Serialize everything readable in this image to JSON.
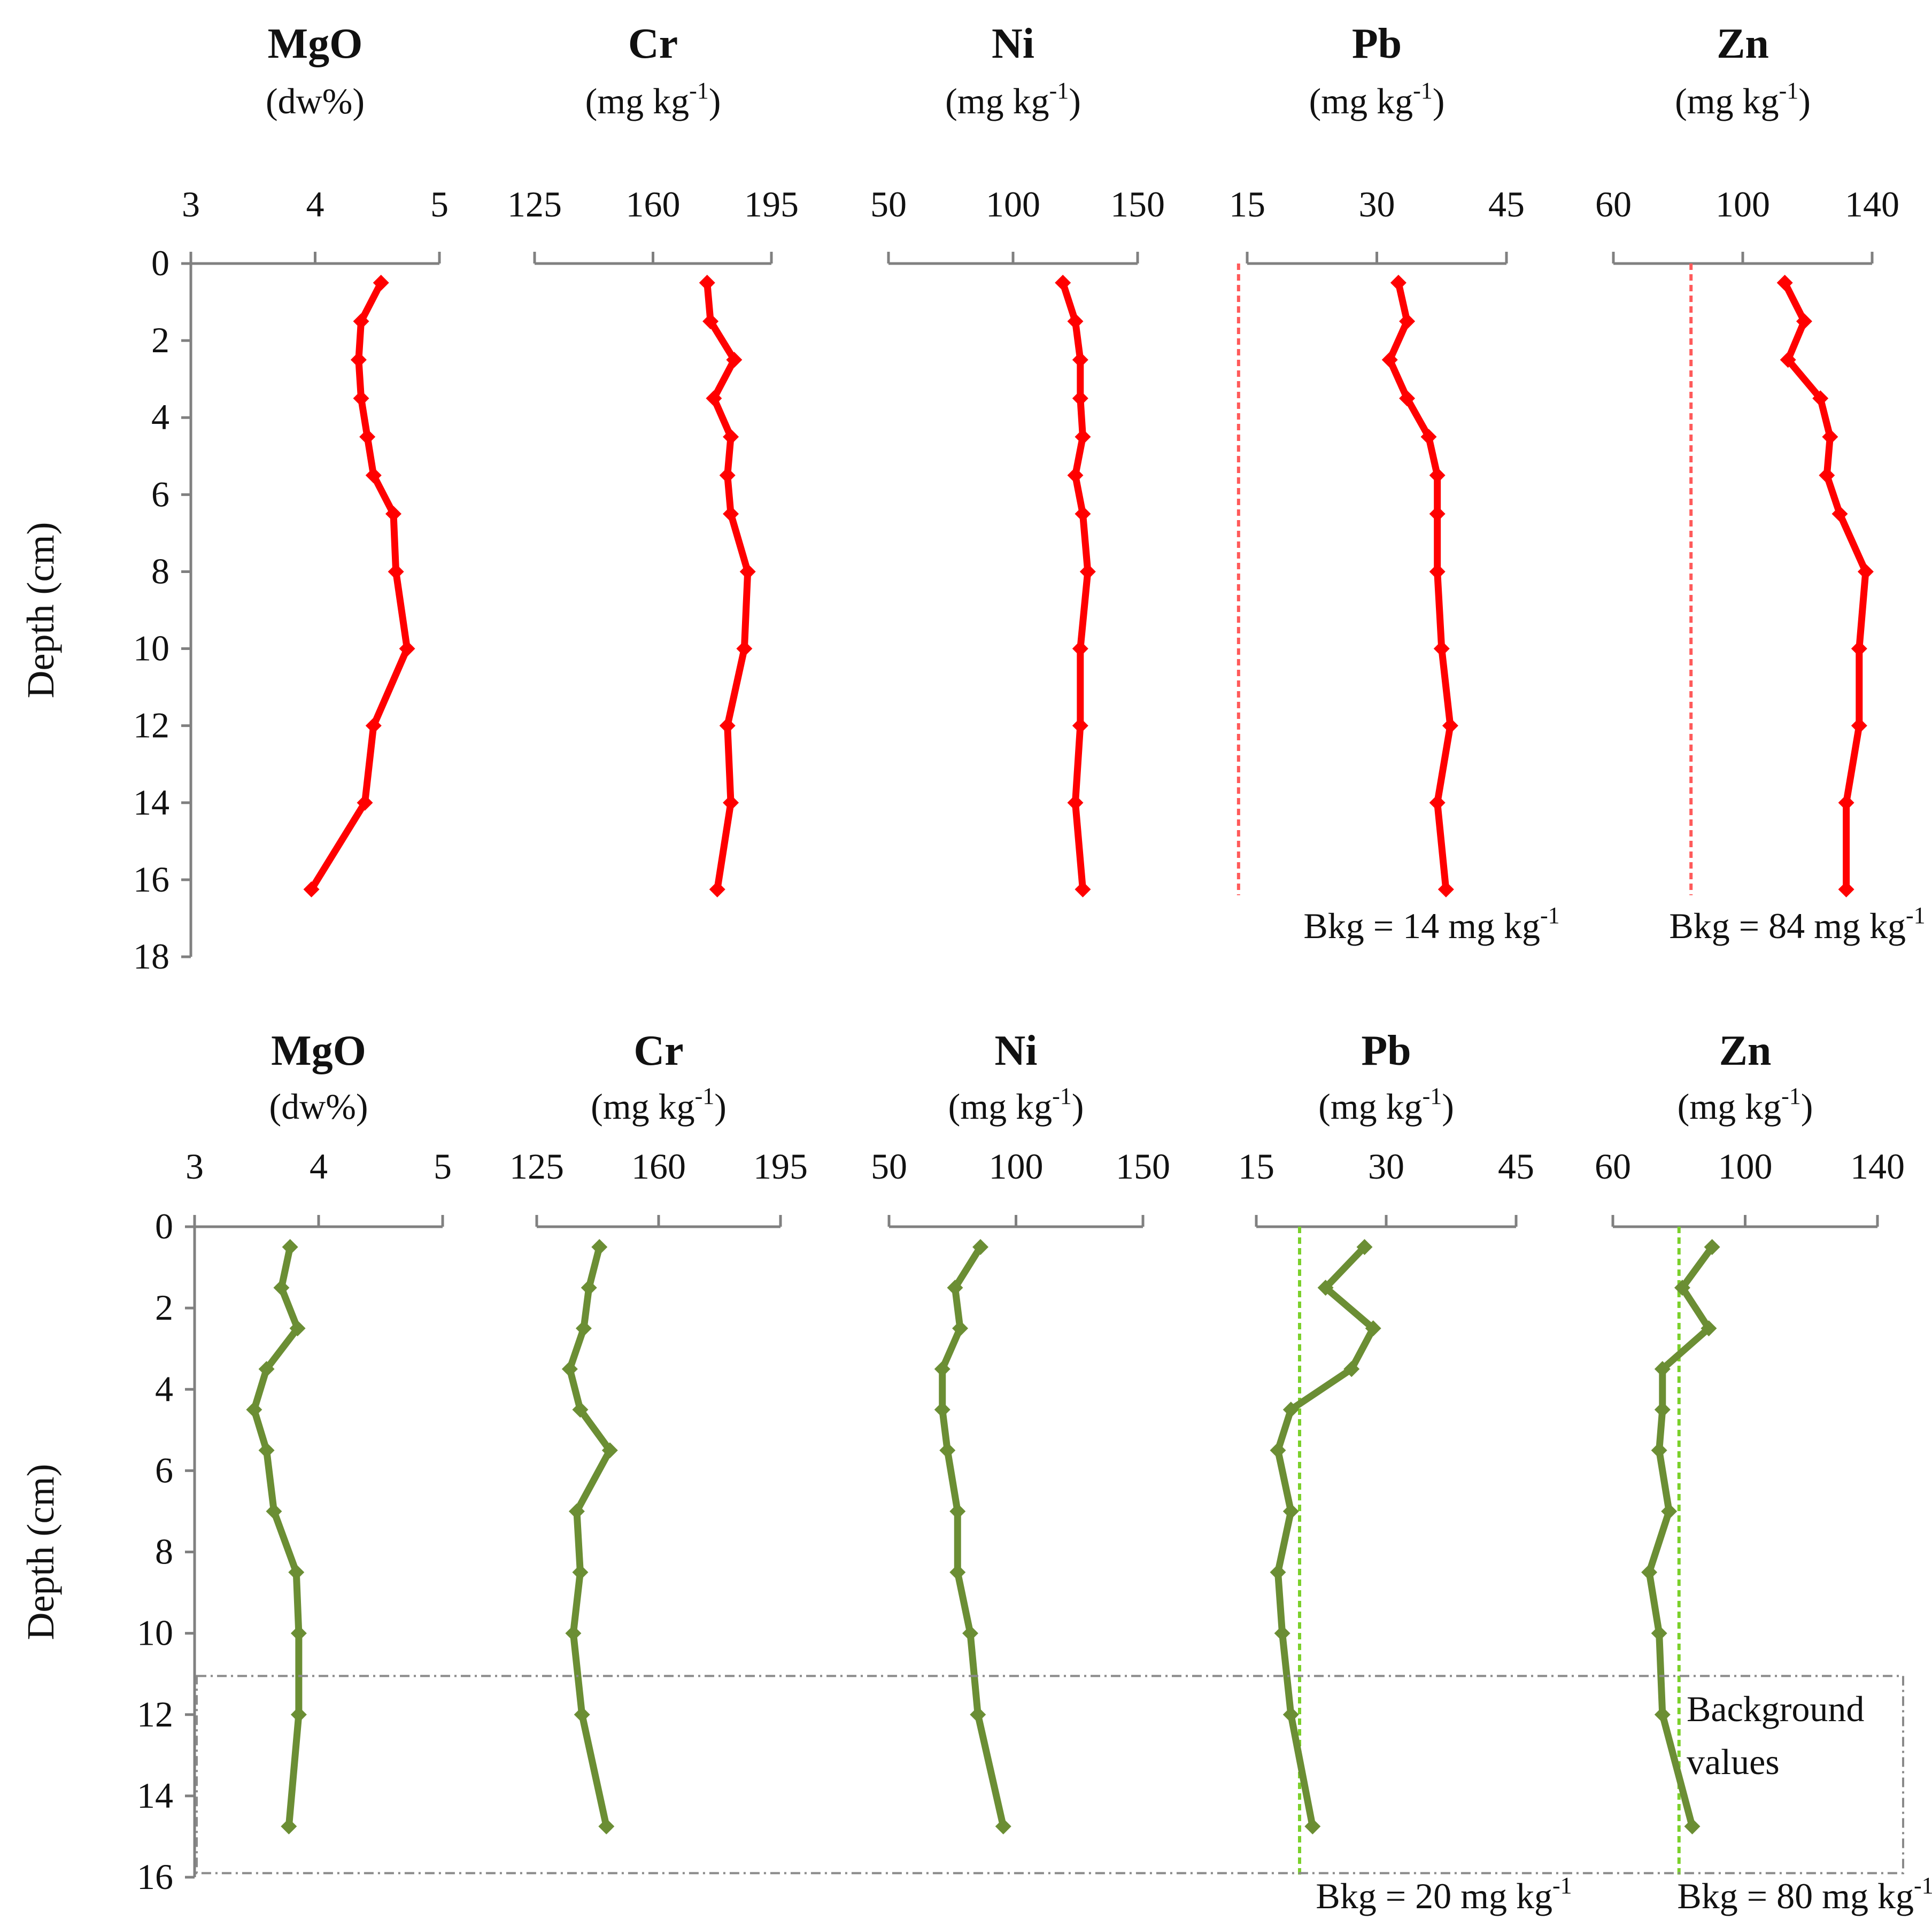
{
  "figure": {
    "depth_label": "Depth (cm)",
    "background_box_label": [
      "Background",
      "values"
    ]
  },
  "colors": {
    "top": "#ff0000",
    "bottom": "#6b8e34",
    "bkg_top": "#ff5a5a",
    "bkg_bottom": "#7bd02b",
    "axis": "#808080"
  },
  "chart_data": [
    {
      "type": "line",
      "name": "top-core",
      "ylabel": "Depth (cm)",
      "ylim": [
        0,
        18
      ],
      "yticks": [
        0,
        2,
        4,
        6,
        8,
        10,
        12,
        14,
        16,
        18
      ],
      "depth": [
        0.5,
        1.5,
        2.5,
        3.5,
        4.5,
        5.5,
        6.5,
        8,
        10,
        12,
        14,
        16.25
      ],
      "panels": [
        {
          "name": "MgO",
          "title": "MgO",
          "unit": "(dw%)",
          "sup": "",
          "unit_end": "",
          "xlim": [
            3,
            5
          ],
          "xticks": [
            "3",
            "4",
            "5"
          ],
          "values": [
            4.53,
            4.37,
            4.35,
            4.37,
            4.42,
            4.47,
            4.63,
            4.65,
            4.74,
            4.47,
            4.4,
            3.97
          ]
        },
        {
          "name": "Cr",
          "title": "Cr",
          "unit": "(mg kg",
          "sup": "-1",
          "unit_end": ")",
          "xlim": [
            125,
            195
          ],
          "xticks": [
            "125",
            "160",
            "195"
          ],
          "values": [
            176,
            177,
            184,
            178,
            183,
            182,
            183,
            188,
            187,
            182,
            183,
            179
          ]
        },
        {
          "name": "Ni",
          "title": "Ni",
          "unit": "(mg kg",
          "sup": "-1",
          "unit_end": ")",
          "xlim": [
            50,
            150
          ],
          "xticks": [
            "50",
            "100",
            "150"
          ],
          "values": [
            120,
            125,
            127,
            127,
            128,
            125,
            128,
            130,
            127,
            127,
            125,
            128
          ]
        },
        {
          "name": "Pb",
          "title": "Pb",
          "unit": "(mg kg",
          "sup": "-1",
          "unit_end": ")",
          "xlim": [
            15,
            45
          ],
          "xticks": [
            "15",
            "30",
            "45"
          ],
          "values": [
            32.5,
            33.5,
            31.5,
            33.5,
            36,
            37,
            37,
            37,
            37.5,
            38.5,
            37,
            38
          ],
          "background": 14,
          "background_label": "Bkg = 14 mg kg",
          "background_label_sup": "-1"
        },
        {
          "name": "Zn",
          "title": "Zn",
          "unit": "(mg kg",
          "sup": "-1",
          "unit_end": ")",
          "xlim": [
            60,
            140
          ],
          "xticks": [
            "60",
            "100",
            "140"
          ],
          "values": [
            113,
            119,
            114,
            124,
            127,
            126,
            130,
            138,
            136,
            136,
            132,
            132
          ],
          "background": 84,
          "background_label": "Bkg = 84 mg kg",
          "background_label_sup": "-1"
        }
      ]
    },
    {
      "type": "line",
      "name": "bottom-core",
      "ylabel": "Depth (cm)",
      "ylim": [
        0,
        16
      ],
      "yticks": [
        0,
        2,
        4,
        6,
        8,
        10,
        12,
        14,
        16
      ],
      "depth": [
        0.5,
        1.5,
        2.5,
        3.5,
        4.5,
        5.5,
        7,
        8.5,
        10,
        12,
        14.75
      ],
      "panels": [
        {
          "name": "MgO",
          "title": "MgO",
          "unit": "(dw%)",
          "sup": "",
          "unit_end": "",
          "xlim": [
            3,
            5
          ],
          "xticks": [
            "3",
            "4",
            "5"
          ],
          "values": [
            3.77,
            3.7,
            3.83,
            3.58,
            3.48,
            3.58,
            3.64,
            3.82,
            3.84,
            3.84,
            3.76
          ]
        },
        {
          "name": "Cr",
          "title": "Cr",
          "unit": "(mg kg",
          "sup": "-1",
          "unit_end": ")",
          "xlim": [
            125,
            195
          ],
          "xticks": [
            "125",
            "160",
            "195"
          ],
          "values": [
            143,
            140,
            138.5,
            134.5,
            137.5,
            146,
            136.5,
            137.5,
            135.5,
            138,
            145
          ]
        },
        {
          "name": "Ni",
          "title": "Ni",
          "unit": "(mg kg",
          "sup": "-1",
          "unit_end": ")",
          "xlim": [
            50,
            150
          ],
          "xticks": [
            "50",
            "100",
            "150"
          ],
          "values": [
            86,
            76,
            78,
            71,
            71,
            73,
            77,
            77,
            82,
            85,
            95
          ]
        },
        {
          "name": "Pb",
          "title": "Pb",
          "unit": "(mg kg",
          "sup": "-1",
          "unit_end": ")",
          "xlim": [
            15,
            45
          ],
          "xticks": [
            "15",
            "30",
            "45"
          ],
          "values": [
            27.5,
            23,
            28.5,
            26,
            19,
            17.5,
            19,
            17.5,
            18,
            19,
            21.5
          ],
          "background": 20,
          "background_label": "Bkg = 20 mg kg",
          "background_label_sup": "-1"
        },
        {
          "name": "Zn",
          "title": "Zn",
          "unit": "(mg kg",
          "sup": "-1",
          "unit_end": ")",
          "xlim": [
            60,
            140
          ],
          "xticks": [
            "60",
            "100",
            "140"
          ],
          "values": [
            90,
            81,
            89,
            75,
            75,
            74,
            77,
            71,
            74,
            75,
            84
          ],
          "background": 80,
          "background_label": "Bkg = 80 mg kg",
          "background_label_sup": "-1"
        }
      ]
    }
  ]
}
